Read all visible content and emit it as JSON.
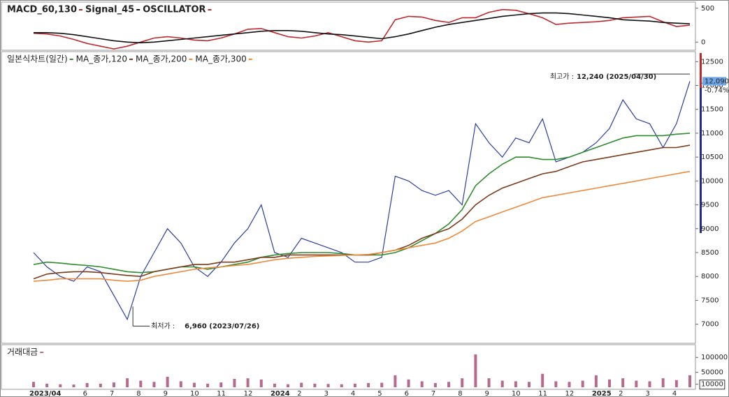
{
  "chart_data": [
    {
      "type": "line",
      "titles": [
        "MACD_60,130",
        "Signal_45",
        "OSCILLATOR"
      ],
      "ylim": [
        -120,
        570
      ],
      "yticks": [
        0,
        500
      ],
      "series": [
        {
          "name": "MACD_60,130",
          "color": "#c0282d",
          "values": [
            130,
            120,
            90,
            40,
            -20,
            -60,
            -100,
            -60,
            0,
            60,
            80,
            60,
            30,
            20,
            60,
            120,
            190,
            200,
            140,
            80,
            60,
            90,
            140,
            80,
            20,
            0,
            20,
            330,
            380,
            370,
            320,
            290,
            360,
            360,
            440,
            480,
            470,
            420,
            360,
            260,
            280,
            290,
            300,
            320,
            360,
            370,
            380,
            300,
            230,
            250
          ]
        },
        {
          "name": "Signal_45",
          "color": "#111111",
          "values": [
            140,
            140,
            130,
            110,
            80,
            50,
            20,
            0,
            -10,
            0,
            20,
            40,
            60,
            80,
            100,
            120,
            140,
            160,
            170,
            170,
            160,
            140,
            120,
            110,
            90,
            70,
            50,
            80,
            120,
            170,
            220,
            260,
            290,
            320,
            350,
            380,
            400,
            420,
            430,
            430,
            420,
            400,
            380,
            360,
            330,
            320,
            310,
            290,
            280,
            270
          ]
        }
      ]
    },
    {
      "type": "line",
      "ylim": [
        6600,
        12680
      ],
      "yticks": [
        7000,
        7500,
        8000,
        8500,
        9000,
        9500,
        10000,
        10500,
        11000,
        11500,
        12000,
        12500
      ],
      "series": [
        {
          "name": "일본식차트(일간)",
          "color": "#2a3f9d",
          "values": [
            8500,
            8200,
            8000,
            7900,
            8200,
            8100,
            7600,
            7100,
            8000,
            8500,
            9000,
            8700,
            8200,
            8000,
            8300,
            8700,
            9000,
            9500,
            8500,
            8400,
            8800,
            8700,
            8600,
            8500,
            8300,
            8300,
            8400,
            10100,
            10000,
            9800,
            9700,
            9800,
            9500,
            11200,
            10800,
            10500,
            10900,
            10800,
            11300,
            10400,
            10500,
            10600,
            10800,
            11100,
            11700,
            11300,
            11200,
            10700,
            11200,
            12090
          ]
        },
        {
          "name": "MA_종가,120",
          "color": "#2e8b2e",
          "values": [
            8250,
            8300,
            8280,
            8250,
            8230,
            8200,
            8150,
            8100,
            8080,
            8100,
            8150,
            8200,
            8200,
            8150,
            8200,
            8250,
            8300,
            8400,
            8450,
            8480,
            8500,
            8500,
            8500,
            8480,
            8450,
            8450,
            8450,
            8500,
            8600,
            8750,
            8900,
            9100,
            9400,
            9900,
            10150,
            10350,
            10500,
            10500,
            10450,
            10450,
            10500,
            10600,
            10700,
            10800,
            10900,
            10950,
            10950,
            10950,
            10980,
            11000
          ]
        },
        {
          "name": "MA_종가,200",
          "color": "#7a3b1a",
          "values": [
            7950,
            8050,
            8080,
            8100,
            8100,
            8080,
            8050,
            8020,
            8000,
            8100,
            8150,
            8200,
            8250,
            8250,
            8300,
            8300,
            8350,
            8400,
            8400,
            8450,
            8450,
            8450,
            8450,
            8450,
            8450,
            8450,
            8500,
            8550,
            8650,
            8800,
            8900,
            9000,
            9200,
            9500,
            9700,
            9850,
            9950,
            10050,
            10150,
            10200,
            10300,
            10400,
            10450,
            10500,
            10550,
            10600,
            10650,
            10700,
            10700,
            10750
          ]
        },
        {
          "name": "MA_종가,300",
          "color": "#ee8a3c",
          "values": [
            7900,
            7920,
            7950,
            7950,
            7950,
            7950,
            7920,
            7900,
            7920,
            8000,
            8050,
            8100,
            8150,
            8180,
            8200,
            8230,
            8250,
            8300,
            8350,
            8380,
            8400,
            8420,
            8430,
            8440,
            8450,
            8460,
            8500,
            8550,
            8600,
            8650,
            8700,
            8800,
            8950,
            9150,
            9250,
            9350,
            9450,
            9550,
            9650,
            9700,
            9750,
            9800,
            9850,
            9900,
            9950,
            10000,
            10050,
            10100,
            10150,
            10200
          ]
        }
      ],
      "high": {
        "label": "최고가 :",
        "value": 12240,
        "text": "12,240 (2025/04/30)"
      },
      "low": {
        "label": "최저가 :",
        "value": 6960,
        "text": "6,960 (2023/07/26)"
      },
      "last": {
        "value": 12090,
        "label": "12,090",
        "change": "-0.74%"
      }
    },
    {
      "type": "bar",
      "title": "거래대금",
      "color": "#b86a8e",
      "ylim": [
        -7000,
        138000
      ],
      "yticks": [
        100000,
        50000,
        10000
      ],
      "categories": [
        "2023/04",
        null,
        null,
        null,
        "6",
        null,
        "7",
        null,
        "8",
        null,
        "9",
        null,
        "10",
        null,
        "11",
        null,
        "12",
        null,
        "2024",
        null,
        "2",
        null,
        "3",
        null,
        "4",
        null,
        "5",
        null,
        "6",
        null,
        "7",
        null,
        "8",
        null,
        "9",
        null,
        "10",
        null,
        "11",
        null,
        "12",
        null,
        "2025",
        null,
        "2",
        null,
        "3",
        null,
        "4",
        null
      ],
      "values": [
        18000,
        12000,
        10000,
        9000,
        14000,
        12000,
        16000,
        30000,
        22000,
        18000,
        35000,
        20000,
        15000,
        12000,
        16000,
        28000,
        30000,
        26000,
        12000,
        10000,
        15000,
        12000,
        11000,
        10000,
        12000,
        14000,
        15000,
        40000,
        26000,
        20000,
        14000,
        18000,
        30000,
        110000,
        30000,
        22000,
        20000,
        18000,
        45000,
        20000,
        18000,
        22000,
        40000,
        26000,
        30000,
        22000,
        20000,
        30000,
        24000,
        40000
      ]
    }
  ]
}
